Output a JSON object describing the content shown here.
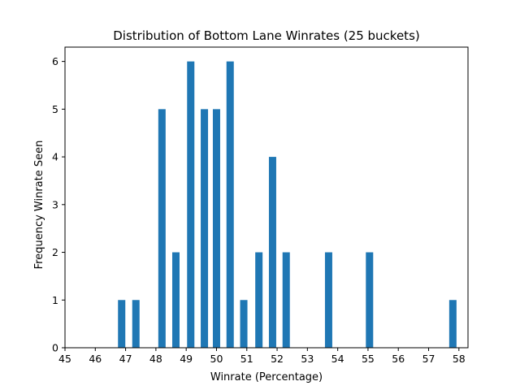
{
  "chart_data": {
    "type": "bar",
    "title": "Distribution of Bottom Lane Winrates (25 buckets)",
    "xlabel": "Winrate (Percentage)",
    "ylabel": "Frequency Winrate Seen",
    "xlim": [
      45,
      58.3
    ],
    "ylim": [
      0,
      6.3
    ],
    "x_ticks": [
      45,
      46,
      47,
      48,
      49,
      50,
      51,
      52,
      53,
      54,
      55,
      56,
      57,
      58
    ],
    "y_ticks": [
      0,
      1,
      2,
      3,
      4,
      5,
      6
    ],
    "bar_color": "#1f77b4",
    "grid": false,
    "x": [
      46.87,
      47.34,
      48.2,
      48.66,
      49.15,
      49.6,
      50.0,
      50.45,
      50.9,
      51.4,
      51.85,
      52.3,
      53.7,
      55.05,
      57.8
    ],
    "values": [
      1,
      1,
      5,
      2,
      6,
      5,
      5,
      6,
      1,
      2,
      4,
      2,
      2,
      2,
      1
    ]
  }
}
